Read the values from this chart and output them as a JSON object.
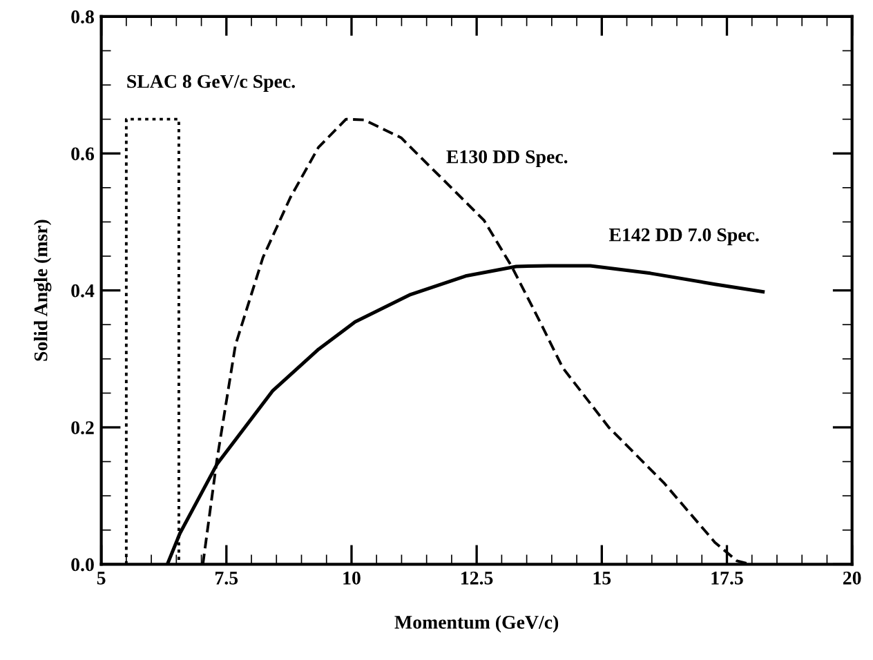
{
  "chart_data": {
    "type": "line",
    "xlabel": "Momentum (GeV/c)",
    "ylabel": "Solid Angle (msr)",
    "xlim": [
      5,
      20
    ],
    "xticks": [
      5,
      7.5,
      10,
      12.5,
      15,
      17.5,
      20
    ],
    "ylim": [
      0,
      0.8
    ],
    "yticks": [
      {
        "value": 0,
        "label": "0.0"
      },
      0.2,
      0.4,
      0.6,
      0.8
    ],
    "grid": false,
    "legend": false,
    "marker": "none",
    "series": [
      {
        "name": "SLAC 8 GeV/c Spec.",
        "color": "#000000",
        "line_style": "dotted",
        "x": [
          5.5,
          5.5,
          6.55,
          6.55
        ],
        "values": [
          0,
          0.65,
          0.65,
          0
        ]
      },
      {
        "name": "E130 DD Spec.",
        "color": "#000000",
        "line_style": "dashed",
        "x": [
          7.03,
          7.31,
          7.68,
          8.23,
          8.78,
          9.34,
          9.89,
          10.25,
          10.99,
          11.91,
          12.65,
          13.2,
          13.76,
          14.22,
          15.14,
          16.24,
          17.26,
          17.7,
          17.98
        ],
        "values": [
          0,
          0.152,
          0.32,
          0.448,
          0.536,
          0.609,
          0.65,
          0.649,
          0.623,
          0.556,
          0.502,
          0.435,
          0.355,
          0.287,
          0.2,
          0.119,
          0.032,
          0.005,
          0
        ]
      },
      {
        "name": "E142 DD 7.0 Spec.",
        "color": "#000000",
        "line_style": "solid",
        "x": [
          6.32,
          6.57,
          7.31,
          8.42,
          9.34,
          10.07,
          11.18,
          12.28,
          13.29,
          13.94,
          14.77,
          15.97,
          17.26,
          18.22
        ],
        "values": [
          0,
          0.045,
          0.146,
          0.253,
          0.314,
          0.354,
          0.394,
          0.421,
          0.435,
          0.436,
          0.436,
          0.425,
          0.409,
          0.398
        ]
      }
    ]
  }
}
